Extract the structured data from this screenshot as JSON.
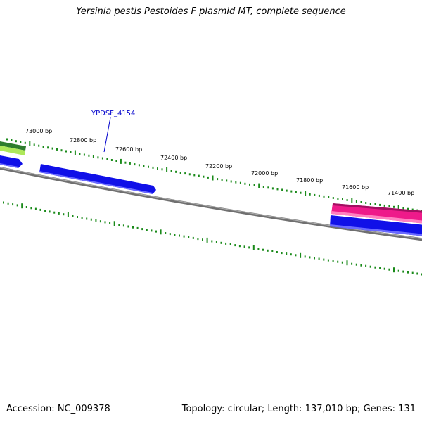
{
  "title": "Yersinia pestis Pestoides F plasmid MT, complete sequence",
  "accession": "Accession: NC_009378",
  "summary": "Topology: circular; Length: 137,010 bp; Genes: 131",
  "scale_labels": [
    "73000 bp",
    "72800 bp",
    "72600 bp",
    "72400 bp",
    "72200 bp",
    "72000 bp",
    "71800 bp",
    "71600 bp",
    "71400 bp"
  ],
  "gene_label": "YPDSF_4154",
  "colors": {
    "backbone": "#808080",
    "ticks": "#1a8a1a",
    "gene_cds": "#1010e8",
    "gene_rna_pink": "#ee1a8a",
    "gene_dark_green": "#2e7d2e",
    "gene_light_green": "#aee85a",
    "label_blue": "#0000cc"
  }
}
